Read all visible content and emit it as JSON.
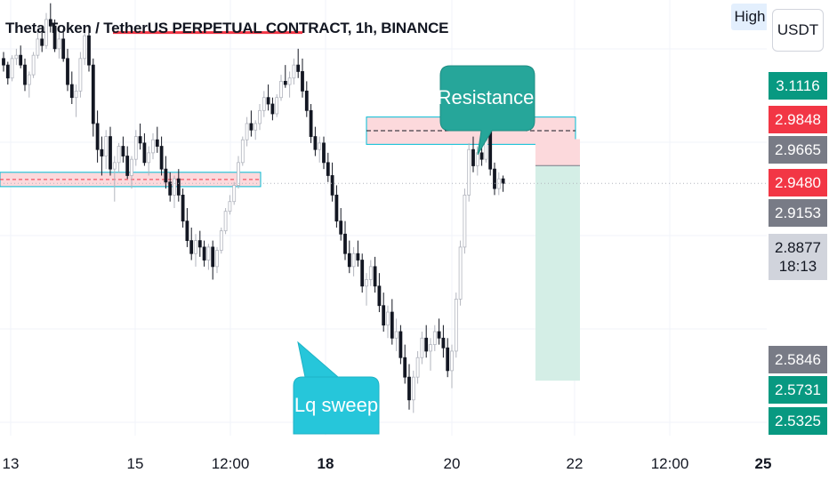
{
  "header": {
    "title": "Theta Token / TetherUS PERPETUAL CONTRACT, 1h, BINANCE",
    "high_button": "High",
    "currency_button": "USDT"
  },
  "chart_data": {
    "type": "candlestick",
    "symbol": "Theta Token / TetherUS PERPETUAL CONTRACT",
    "interval": "1h",
    "exchange": "BINANCE",
    "x_axis_ticks": [
      {
        "label": "13",
        "bold": false
      },
      {
        "label": "15",
        "bold": false
      },
      {
        "label": "12:00",
        "bold": false
      },
      {
        "label": "18",
        "bold": true
      },
      {
        "label": "20",
        "bold": false
      },
      {
        "label": "22",
        "bold": false
      },
      {
        "label": "12:00",
        "bold": false
      },
      {
        "label": "25",
        "bold": true
      }
    ],
    "price_range": [
      2.5,
      3.17
    ],
    "price_labels": [
      {
        "value": "3.1116",
        "color": "#089981"
      },
      {
        "value": "2.9848",
        "color": "#f23645"
      },
      {
        "value": "2.9665",
        "color": "#787b86"
      },
      {
        "value": "2.9480",
        "color": "#f23645"
      },
      {
        "value": "2.9153",
        "color": "#787b86"
      },
      {
        "value": "2.8877",
        "sub": "18:13",
        "color": "#d1d4dc"
      },
      {
        "value": "2.5846",
        "color": "#787b86"
      },
      {
        "value": "2.5731",
        "color": "#089981"
      },
      {
        "value": "2.5325",
        "color": "#089981"
      }
    ],
    "annotations": [
      {
        "text": "Resistance",
        "color": "#26a69a"
      },
      {
        "text": "Lq sweep",
        "color": "#26c6da"
      }
    ],
    "zones": [
      {
        "type": "support",
        "low": 2.883,
        "high": 2.905
      },
      {
        "type": "resistance",
        "low": 2.948,
        "high": 2.99
      }
    ],
    "swing_high_line": 3.12,
    "position": {
      "type": "short",
      "entry": 2.9153,
      "stop": 2.956,
      "target": 2.5846
    },
    "candles": [
      [
        3.08,
        3.09,
        3.06,
        3.07
      ],
      [
        3.07,
        3.075,
        3.04,
        3.05
      ],
      [
        3.05,
        3.085,
        3.045,
        3.08
      ],
      [
        3.08,
        3.095,
        3.07,
        3.085
      ],
      [
        3.085,
        3.1,
        3.065,
        3.07
      ],
      [
        3.07,
        3.08,
        3.03,
        3.04
      ],
      [
        3.04,
        3.06,
        3.02,
        3.055
      ],
      [
        3.055,
        3.09,
        3.05,
        3.085
      ],
      [
        3.085,
        3.12,
        3.08,
        3.11
      ],
      [
        3.11,
        3.13,
        3.09,
        3.1
      ],
      [
        3.1,
        3.15,
        3.095,
        3.14
      ],
      [
        3.14,
        3.165,
        3.12,
        3.13
      ],
      [
        3.13,
        3.14,
        3.09,
        3.095
      ],
      [
        3.095,
        3.12,
        3.08,
        3.11
      ],
      [
        3.11,
        3.125,
        3.075,
        3.08
      ],
      [
        3.08,
        3.095,
        3.03,
        3.04
      ],
      [
        3.04,
        3.06,
        3.01,
        3.02
      ],
      [
        3.02,
        3.04,
        2.99,
        3.03
      ],
      [
        3.03,
        3.09,
        3.02,
        3.08
      ],
      [
        3.08,
        3.12,
        3.07,
        3.115
      ],
      [
        3.115,
        3.125,
        3.06,
        3.07
      ],
      [
        3.07,
        3.08,
        2.96,
        2.98
      ],
      [
        2.98,
        3.0,
        2.92,
        2.94
      ],
      [
        2.94,
        2.96,
        2.9,
        2.93
      ],
      [
        2.93,
        2.97,
        2.91,
        2.96
      ],
      [
        2.96,
        2.975,
        2.9,
        2.91
      ],
      [
        2.91,
        2.93,
        2.86,
        2.92
      ],
      [
        2.92,
        2.95,
        2.905,
        2.945
      ],
      [
        2.945,
        2.96,
        2.92,
        2.93
      ],
      [
        2.93,
        2.945,
        2.895,
        2.9
      ],
      [
        2.9,
        2.93,
        2.88,
        2.925
      ],
      [
        2.925,
        2.97,
        2.915,
        2.96
      ],
      [
        2.96,
        2.98,
        2.94,
        2.95
      ],
      [
        2.95,
        2.965,
        2.915,
        2.92
      ],
      [
        2.92,
        2.945,
        2.9,
        2.935
      ],
      [
        2.935,
        2.965,
        2.925,
        2.955
      ],
      [
        2.955,
        2.975,
        2.935,
        2.945
      ],
      [
        2.945,
        2.96,
        2.9,
        2.91
      ],
      [
        2.91,
        2.93,
        2.88,
        2.89
      ],
      [
        2.89,
        2.905,
        2.86,
        2.87
      ],
      [
        2.87,
        2.9,
        2.85,
        2.895
      ],
      [
        2.895,
        2.91,
        2.86,
        2.87
      ],
      [
        2.87,
        2.88,
        2.82,
        2.83
      ],
      [
        2.83,
        2.85,
        2.79,
        2.8
      ],
      [
        2.8,
        2.82,
        2.77,
        2.78
      ],
      [
        2.78,
        2.81,
        2.76,
        2.8
      ],
      [
        2.8,
        2.815,
        2.775,
        2.79
      ],
      [
        2.79,
        2.8,
        2.76,
        2.77
      ],
      [
        2.77,
        2.795,
        2.755,
        2.79
      ],
      [
        2.79,
        2.8,
        2.74,
        2.76
      ],
      [
        2.76,
        2.79,
        2.75,
        2.785
      ],
      [
        2.785,
        2.82,
        2.78,
        2.815
      ],
      [
        2.815,
        2.85,
        2.81,
        2.845
      ],
      [
        2.845,
        2.87,
        2.84,
        2.86
      ],
      [
        2.86,
        2.89,
        2.855,
        2.885
      ],
      [
        2.885,
        2.93,
        2.88,
        2.92
      ],
      [
        2.92,
        2.96,
        2.915,
        2.955
      ],
      [
        2.955,
        2.99,
        2.945,
        2.98
      ],
      [
        2.98,
        3.0,
        2.96,
        2.97
      ],
      [
        2.97,
        2.985,
        2.955,
        2.98
      ],
      [
        2.98,
        3.01,
        2.97,
        3.0
      ],
      [
        3.0,
        3.03,
        2.99,
        3.02
      ],
      [
        3.02,
        3.04,
        3.0,
        3.01
      ],
      [
        3.01,
        3.02,
        2.985,
        2.995
      ],
      [
        2.995,
        3.025,
        2.99,
        3.02
      ],
      [
        3.02,
        3.055,
        3.015,
        3.045
      ],
      [
        3.045,
        3.07,
        3.035,
        3.04
      ],
      [
        3.04,
        3.06,
        3.02,
        3.05
      ],
      [
        3.05,
        3.08,
        3.04,
        3.07
      ],
      [
        3.07,
        3.095,
        3.05,
        3.06
      ],
      [
        3.06,
        3.08,
        3.02,
        3.03
      ],
      [
        3.03,
        3.045,
        2.99,
        3.0
      ],
      [
        3.0,
        3.01,
        2.95,
        2.96
      ],
      [
        2.96,
        2.975,
        2.93,
        2.94
      ],
      [
        2.94,
        2.96,
        2.92,
        2.95
      ],
      [
        2.95,
        2.96,
        2.91,
        2.92
      ],
      [
        2.92,
        2.935,
        2.89,
        2.9
      ],
      [
        2.9,
        2.92,
        2.86,
        2.87
      ],
      [
        2.87,
        2.885,
        2.82,
        2.83
      ],
      [
        2.83,
        2.85,
        2.8,
        2.81
      ],
      [
        2.81,
        2.83,
        2.77,
        2.78
      ],
      [
        2.78,
        2.8,
        2.75,
        2.76
      ],
      [
        2.76,
        2.79,
        2.745,
        2.78
      ],
      [
        2.78,
        2.8,
        2.76,
        2.77
      ],
      [
        2.77,
        2.78,
        2.72,
        2.73
      ],
      [
        2.73,
        2.75,
        2.7,
        2.74
      ],
      [
        2.74,
        2.77,
        2.73,
        2.76
      ],
      [
        2.76,
        2.775,
        2.72,
        2.73
      ],
      [
        2.73,
        2.75,
        2.69,
        2.7
      ],
      [
        2.7,
        2.72,
        2.66,
        2.67
      ],
      [
        2.67,
        2.7,
        2.65,
        2.69
      ],
      [
        2.69,
        2.71,
        2.64,
        2.65
      ],
      [
        2.65,
        2.68,
        2.63,
        2.66
      ],
      [
        2.66,
        2.67,
        2.61,
        2.62
      ],
      [
        2.62,
        2.64,
        2.58,
        2.59
      ],
      [
        2.59,
        2.61,
        2.54,
        2.555
      ],
      [
        2.555,
        2.6,
        2.535,
        2.59
      ],
      [
        2.59,
        2.63,
        2.58,
        2.62
      ],
      [
        2.62,
        2.66,
        2.61,
        2.65
      ],
      [
        2.65,
        2.67,
        2.62,
        2.63
      ],
      [
        2.63,
        2.65,
        2.6,
        2.64
      ],
      [
        2.64,
        2.67,
        2.63,
        2.66
      ],
      [
        2.66,
        2.68,
        2.64,
        2.65
      ],
      [
        2.65,
        2.67,
        2.62,
        2.635
      ],
      [
        2.635,
        2.65,
        2.59,
        2.6
      ],
      [
        2.6,
        2.64,
        2.573,
        2.63
      ],
      [
        2.63,
        2.72,
        2.62,
        2.71
      ],
      [
        2.71,
        2.8,
        2.7,
        2.79
      ],
      [
        2.79,
        2.88,
        2.78,
        2.87
      ],
      [
        2.87,
        2.95,
        2.86,
        2.94
      ],
      [
        2.94,
        2.96,
        2.905,
        2.915
      ],
      [
        2.915,
        2.945,
        2.9,
        2.935
      ],
      [
        2.935,
        2.95,
        2.915,
        2.925
      ],
      [
        2.925,
        2.99,
        2.92,
        2.975
      ],
      [
        2.975,
        2.985,
        2.9,
        2.91
      ],
      [
        2.91,
        2.92,
        2.87,
        2.88
      ],
      [
        2.88,
        2.905,
        2.87,
        2.895
      ],
      [
        2.895,
        2.9,
        2.875,
        2.888
      ]
    ]
  }
}
